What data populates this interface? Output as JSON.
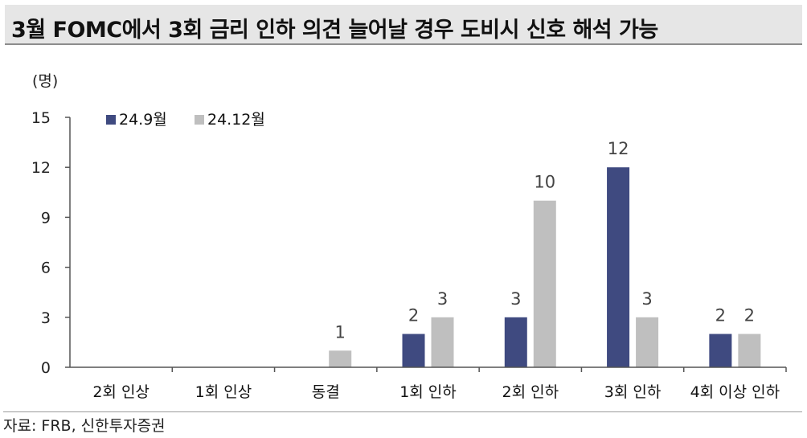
{
  "title": "3월 FOMC에서 3회 금리 인하 의견 늘어날 경우 도비시 신호 해석 가능",
  "source": "자료: FRB, 신한투자증권",
  "chart_data": {
    "type": "bar",
    "ylabel": "(명)",
    "ylim": [
      0,
      15
    ],
    "yticks": [
      0,
      3,
      6,
      9,
      12,
      15
    ],
    "grid": false,
    "legend_position": "top-left",
    "categories": [
      "2회 인상",
      "1회 인상",
      "동결",
      "1회 인하",
      "2회 인하",
      "3회 인하",
      "4회 이상 인하"
    ],
    "series": [
      {
        "name": "24.9월",
        "color": "#3f4a80",
        "values": [
          0,
          0,
          0,
          2,
          3,
          12,
          2
        ]
      },
      {
        "name": "24.12월",
        "color": "#bfbfbf",
        "values": [
          0,
          0,
          1,
          3,
          10,
          3,
          2
        ]
      }
    ]
  }
}
